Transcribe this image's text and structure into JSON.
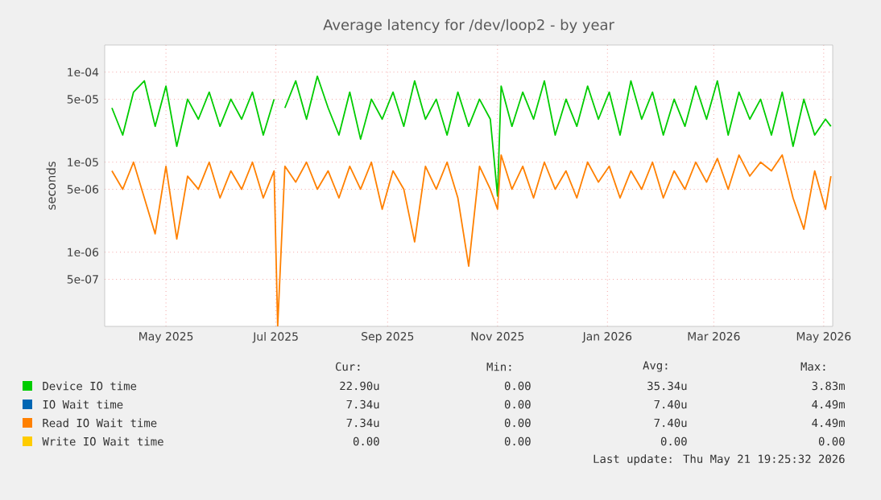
{
  "chart_data": {
    "type": "line",
    "title": "Average latency for /dev/loop2 - by year",
    "ylabel": "seconds",
    "log": true,
    "grid": true,
    "legend": "bottom",
    "xlim": [
      "2025-03-28",
      "2026-05-06"
    ],
    "ylim": [
      1.5e-07,
      0.0002
    ],
    "xticks": [
      {
        "value": "2025-05-01",
        "label": "May 2025"
      },
      {
        "value": "2025-07-01",
        "label": "Jul 2025"
      },
      {
        "value": "2025-09-01",
        "label": "Sep 2025"
      },
      {
        "value": "2025-11-01",
        "label": "Nov 2025"
      },
      {
        "value": "2026-01-01",
        "label": "Jan 2026"
      },
      {
        "value": "2026-03-01",
        "label": "Mar 2026"
      },
      {
        "value": "2026-05-01",
        "label": "May 2026"
      }
    ],
    "yticks": [
      {
        "value": 5e-07,
        "label": "5e-07"
      },
      {
        "value": 1e-06,
        "label": "1e-06"
      },
      {
        "value": 5e-06,
        "label": "5e-06"
      },
      {
        "value": 1e-05,
        "label": "1e-05"
      },
      {
        "value": 5e-05,
        "label": "5e-05"
      },
      {
        "value": 0.0001,
        "label": "1e-04"
      }
    ],
    "x": [
      "2025-04-01",
      "2025-04-07",
      "2025-04-13",
      "2025-04-19",
      "2025-04-25",
      "2025-05-01",
      "2025-05-07",
      "2025-05-13",
      "2025-05-19",
      "2025-05-25",
      "2025-05-31",
      "2025-06-06",
      "2025-06-12",
      "2025-06-18",
      "2025-06-24",
      "2025-06-30",
      "2025-07-02",
      "2025-07-06",
      "2025-07-12",
      "2025-07-18",
      "2025-07-24",
      "2025-07-30",
      "2025-08-05",
      "2025-08-11",
      "2025-08-17",
      "2025-08-23",
      "2025-08-29",
      "2025-09-04",
      "2025-09-10",
      "2025-09-16",
      "2025-09-22",
      "2025-09-28",
      "2025-10-04",
      "2025-10-10",
      "2025-10-16",
      "2025-10-22",
      "2025-10-28",
      "2025-11-01",
      "2025-11-03",
      "2025-11-09",
      "2025-11-15",
      "2025-11-21",
      "2025-11-27",
      "2025-12-03",
      "2025-12-09",
      "2025-12-15",
      "2025-12-21",
      "2025-12-27",
      "2026-01-02",
      "2026-01-08",
      "2026-01-14",
      "2026-01-20",
      "2026-01-26",
      "2026-02-01",
      "2026-02-07",
      "2026-02-13",
      "2026-02-19",
      "2026-02-25",
      "2026-03-03",
      "2026-03-09",
      "2026-03-15",
      "2026-03-21",
      "2026-03-27",
      "2026-04-02",
      "2026-04-08",
      "2026-04-14",
      "2026-04-20",
      "2026-04-26",
      "2026-05-02",
      "2026-05-05"
    ],
    "series": [
      {
        "name": "Device IO time",
        "color": "#00cc00",
        "values": [
          4e-05,
          2e-05,
          6e-05,
          8e-05,
          2.5e-05,
          7e-05,
          1.5e-05,
          5e-05,
          3e-05,
          6e-05,
          2.5e-05,
          5e-05,
          3e-05,
          6e-05,
          2e-05,
          5e-05,
          null,
          4e-05,
          8e-05,
          3e-05,
          9e-05,
          4e-05,
          2e-05,
          6e-05,
          1.8e-05,
          5e-05,
          3e-05,
          6e-05,
          2.5e-05,
          8e-05,
          3e-05,
          5e-05,
          2e-05,
          6e-05,
          2.5e-05,
          5e-05,
          3e-05,
          4.2e-06,
          7e-05,
          2.5e-05,
          6e-05,
          3e-05,
          8e-05,
          2e-05,
          5e-05,
          2.5e-05,
          7e-05,
          3e-05,
          6e-05,
          2e-05,
          8e-05,
          3e-05,
          6e-05,
          2e-05,
          5e-05,
          2.5e-05,
          7e-05,
          3e-05,
          8e-05,
          2e-05,
          6e-05,
          3e-05,
          5e-05,
          2e-05,
          6e-05,
          1.5e-05,
          5e-05,
          2e-05,
          3e-05,
          2.5e-05
        ]
      },
      {
        "name": "IO Wait time",
        "color": "#0066b3",
        "values": [
          null,
          null,
          null,
          null,
          null,
          null,
          null,
          null,
          null,
          null,
          null,
          null,
          null,
          null,
          null,
          null,
          null,
          null,
          null,
          null,
          null,
          null,
          null,
          null,
          null,
          null,
          null,
          null,
          null,
          null,
          null,
          null,
          null,
          null,
          null,
          null,
          null,
          null,
          null,
          null,
          null,
          null,
          null,
          null,
          null,
          null,
          null,
          null,
          null,
          null,
          null,
          null,
          null,
          null,
          null,
          null,
          null,
          null,
          null,
          null,
          null,
          null,
          null,
          null,
          null,
          null,
          null,
          null,
          null,
          null
        ]
      },
      {
        "name": "Read IO Wait time",
        "color": "#ff8000",
        "values": [
          8e-06,
          5e-06,
          1e-05,
          4e-06,
          1.6e-06,
          9e-06,
          1.4e-06,
          7e-06,
          5e-06,
          1e-05,
          4e-06,
          8e-06,
          5e-06,
          1e-05,
          4e-06,
          8e-06,
          1.5e-07,
          9e-06,
          6e-06,
          1e-05,
          5e-06,
          8e-06,
          4e-06,
          9e-06,
          5e-06,
          1e-05,
          3e-06,
          8e-06,
          5e-06,
          1.3e-06,
          9e-06,
          5e-06,
          1e-05,
          4e-06,
          7e-07,
          9e-06,
          5e-06,
          3e-06,
          1.2e-05,
          5e-06,
          9e-06,
          4e-06,
          1e-05,
          5e-06,
          8e-06,
          4e-06,
          1e-05,
          6e-06,
          9e-06,
          4e-06,
          8e-06,
          5e-06,
          1e-05,
          4e-06,
          8e-06,
          5e-06,
          1e-05,
          6e-06,
          1.1e-05,
          5e-06,
          1.2e-05,
          7e-06,
          1e-05,
          8e-06,
          1.2e-05,
          4e-06,
          1.8e-06,
          8e-06,
          3e-06,
          7e-06
        ]
      },
      {
        "name": "Write IO Wait time",
        "color": "#ffcc00",
        "values": [
          null,
          null,
          null,
          null,
          null,
          null,
          null,
          null,
          null,
          null,
          null,
          null,
          null,
          null,
          null,
          null,
          null,
          null,
          null,
          null,
          null,
          null,
          null,
          null,
          null,
          null,
          null,
          null,
          null,
          null,
          null,
          null,
          null,
          null,
          null,
          null,
          null,
          null,
          null,
          null,
          null,
          null,
          null,
          null,
          null,
          null,
          null,
          null,
          null,
          null,
          null,
          null,
          null,
          null,
          null,
          null,
          null,
          null,
          null,
          null,
          null,
          null,
          null,
          null,
          null,
          null,
          null,
          null,
          null,
          null
        ]
      }
    ],
    "annotations": [
      "Cur:",
      "Min:",
      "Avg:",
      "Max:",
      "22.90u",
      "0.00",
      "35.34u",
      "3.83m",
      "7.34u",
      "0.00",
      "7.40u",
      "4.49m",
      "7.34u",
      "0.00",
      "7.40u",
      "4.49m",
      "0.00",
      "0.00",
      "0.00",
      "0.00",
      "Last update: Thu May 21 19:25:32 2026"
    ]
  }
}
